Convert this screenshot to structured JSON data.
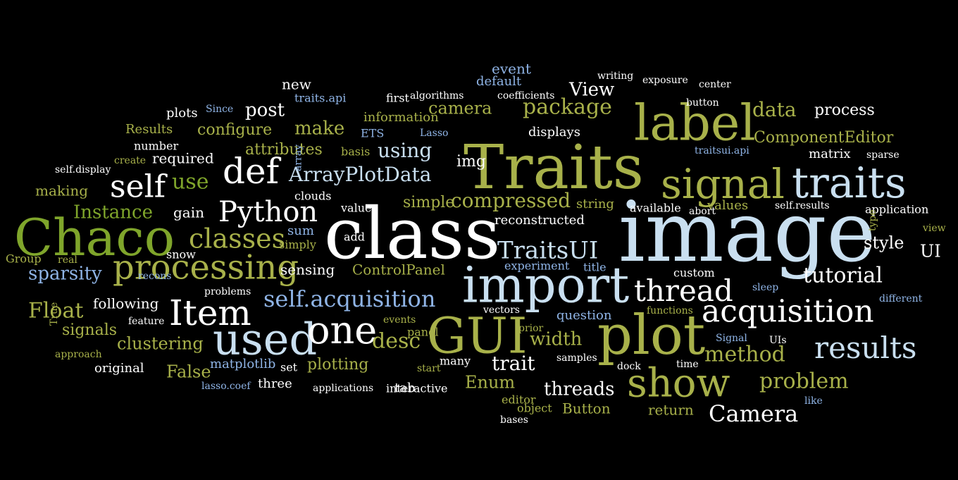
{
  "palette": {
    "background": "#000000",
    "white": "#ffffff",
    "light_blue": "#c9dff0",
    "blue": "#8fb4e6",
    "green": "#7fa52b",
    "olive": "#a8b14a"
  },
  "words": [
    {
      "text": "image",
      "color": "light_blue"
    },
    {
      "text": "Traits",
      "color": "olive"
    },
    {
      "text": "class",
      "color": "white"
    },
    {
      "text": "label",
      "color": "olive"
    },
    {
      "text": "signal",
      "color": "olive"
    },
    {
      "text": "traits",
      "color": "light_blue"
    },
    {
      "text": "Chaco",
      "color": "green"
    },
    {
      "text": "import",
      "color": "light_blue"
    },
    {
      "text": "plot",
      "color": "olive"
    },
    {
      "text": "GUI",
      "color": "olive"
    },
    {
      "text": "show",
      "color": "olive"
    },
    {
      "text": "used",
      "color": "light_blue"
    },
    {
      "text": "one",
      "color": "white"
    },
    {
      "text": "acquisition",
      "color": "white"
    },
    {
      "text": "Item",
      "color": "white"
    },
    {
      "text": "processing",
      "color": "olive"
    },
    {
      "text": "results",
      "color": "light_blue"
    },
    {
      "text": "def",
      "color": "white"
    },
    {
      "text": "Python",
      "color": "white"
    },
    {
      "text": "self",
      "color": "white"
    },
    {
      "text": "thread",
      "color": "white"
    },
    {
      "text": "TraitsUI",
      "color": "light_blue"
    },
    {
      "text": "classes",
      "color": "olive"
    },
    {
      "text": "self.acquisition",
      "color": "blue"
    },
    {
      "text": "package",
      "color": "olive"
    },
    {
      "text": "data",
      "color": "olive"
    },
    {
      "text": "problem",
      "color": "olive"
    },
    {
      "text": "method",
      "color": "olive"
    },
    {
      "text": "tutorial",
      "color": "white"
    },
    {
      "text": "Camera",
      "color": "white"
    },
    {
      "text": "Float",
      "color": "olive"
    },
    {
      "text": "desc",
      "color": "olive"
    },
    {
      "text": "threads",
      "color": "white"
    },
    {
      "text": "trait",
      "color": "white"
    },
    {
      "text": "width",
      "color": "olive"
    },
    {
      "text": "using",
      "color": "light_blue"
    },
    {
      "text": "ArrayPlotData",
      "color": "light_blue"
    },
    {
      "text": "compressed",
      "color": "olive"
    },
    {
      "text": "View",
      "color": "white"
    },
    {
      "text": "post",
      "color": "white"
    },
    {
      "text": "make",
      "color": "olive"
    },
    {
      "text": "use",
      "color": "green"
    },
    {
      "text": "camera",
      "color": "olive"
    },
    {
      "text": "process",
      "color": "white"
    },
    {
      "text": "UI",
      "color": "white"
    },
    {
      "text": "style",
      "color": "white"
    },
    {
      "text": "False",
      "color": "olive"
    },
    {
      "text": "Instance",
      "color": "green"
    },
    {
      "text": "sparsity",
      "color": "blue"
    },
    {
      "text": "clustering",
      "color": "olive"
    },
    {
      "text": "Enum",
      "color": "olive"
    },
    {
      "text": "ComponentEditor",
      "color": "olive"
    },
    {
      "text": "attributes",
      "color": "olive"
    },
    {
      "text": "configure",
      "color": "olive"
    },
    {
      "text": "simple",
      "color": "olive"
    },
    {
      "text": "sum",
      "color": "blue"
    },
    {
      "text": "signals",
      "color": "olive"
    },
    {
      "text": "following",
      "color": "white"
    },
    {
      "text": "gain",
      "color": "white"
    },
    {
      "text": "required",
      "color": "white"
    },
    {
      "text": "making",
      "color": "olive"
    },
    {
      "text": "plotting",
      "color": "olive"
    },
    {
      "text": "matplotlib",
      "color": "blue"
    },
    {
      "text": "Button",
      "color": "olive"
    },
    {
      "text": "ControlPanel",
      "color": "olive"
    },
    {
      "text": "sensing",
      "color": "white"
    },
    {
      "text": "return",
      "color": "olive"
    },
    {
      "text": "values",
      "color": "olive"
    },
    {
      "text": "question",
      "color": "blue"
    },
    {
      "text": "information",
      "color": "olive"
    },
    {
      "text": "new",
      "color": "white"
    },
    {
      "text": "event",
      "color": "blue"
    },
    {
      "text": "default",
      "color": "blue"
    },
    {
      "text": "plots",
      "color": "white"
    },
    {
      "text": "Results",
      "color": "olive"
    },
    {
      "text": "number",
      "color": "white"
    },
    {
      "text": "img",
      "color": "white"
    },
    {
      "text": "matrix",
      "color": "white"
    },
    {
      "text": "displays",
      "color": "white"
    },
    {
      "text": "reconstructed",
      "color": "white"
    },
    {
      "text": "string",
      "color": "olive"
    },
    {
      "text": "available",
      "color": "white"
    },
    {
      "text": "application",
      "color": "white"
    },
    {
      "text": "custom",
      "color": "white"
    },
    {
      "text": "experiment",
      "color": "blue"
    },
    {
      "text": "title",
      "color": "blue"
    },
    {
      "text": "original",
      "color": "white"
    },
    {
      "text": "three",
      "color": "white"
    },
    {
      "text": "set",
      "color": "white"
    },
    {
      "text": "tab",
      "color": "white"
    },
    {
      "text": "many",
      "color": "white"
    },
    {
      "text": "interactive",
      "color": "white"
    },
    {
      "text": "editor",
      "color": "olive"
    },
    {
      "text": "object",
      "color": "olive"
    },
    {
      "text": "panel",
      "color": "olive"
    },
    {
      "text": "feature",
      "color": "white"
    },
    {
      "text": "vectors",
      "color": "white"
    },
    {
      "text": "functions",
      "color": "olive"
    },
    {
      "text": "clouds",
      "color": "white"
    },
    {
      "text": "value",
      "color": "white"
    },
    {
      "text": "add",
      "color": "white"
    },
    {
      "text": "simply",
      "color": "olive"
    },
    {
      "text": "snow",
      "color": "white"
    },
    {
      "text": "Group",
      "color": "olive"
    },
    {
      "text": "basis",
      "color": "olive"
    },
    {
      "text": "ETS",
      "color": "blue"
    },
    {
      "text": "first",
      "color": "white"
    },
    {
      "text": "traits.api",
      "color": "blue"
    },
    {
      "text": "algorithms",
      "color": "white"
    },
    {
      "text": "coefficients",
      "color": "white"
    },
    {
      "text": "writing",
      "color": "white"
    },
    {
      "text": "exposure",
      "color": "white"
    },
    {
      "text": "center",
      "color": "white"
    },
    {
      "text": "button",
      "color": "white"
    },
    {
      "text": "traitsui.api",
      "color": "blue"
    },
    {
      "text": "sparse",
      "color": "white"
    },
    {
      "text": "abort",
      "color": "white"
    },
    {
      "text": "self.results",
      "color": "white"
    },
    {
      "text": "view",
      "color": "olive"
    },
    {
      "text": "type",
      "color": "olive"
    },
    {
      "text": "sleep",
      "color": "blue"
    },
    {
      "text": "different",
      "color": "blue"
    },
    {
      "text": "Signal",
      "color": "blue"
    },
    {
      "text": "UIs",
      "color": "white"
    },
    {
      "text": "like",
      "color": "blue"
    },
    {
      "text": "dock",
      "color": "white"
    },
    {
      "text": "time",
      "color": "white"
    },
    {
      "text": "samples",
      "color": "white"
    },
    {
      "text": "prior",
      "color": "olive"
    },
    {
      "text": "events",
      "color": "olive"
    },
    {
      "text": "start",
      "color": "olive"
    },
    {
      "text": "applications",
      "color": "white"
    },
    {
      "text": "bases",
      "color": "white"
    },
    {
      "text": "approach",
      "color": "olive"
    },
    {
      "text": "True",
      "color": "olive"
    },
    {
      "text": "lasso.coef",
      "color": "blue"
    },
    {
      "text": "real",
      "color": "olive"
    },
    {
      "text": "recons",
      "color": "blue"
    },
    {
      "text": "problems",
      "color": "white"
    },
    {
      "text": "self.display",
      "color": "white"
    },
    {
      "text": "create",
      "color": "olive"
    },
    {
      "text": "Since",
      "color": "blue"
    },
    {
      "text": "Lasso",
      "color": "blue"
    },
    {
      "text": "array",
      "color": "blue"
    }
  ]
}
